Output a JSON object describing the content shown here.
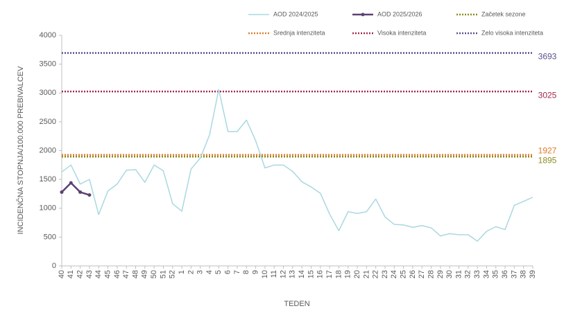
{
  "chart_data": {
    "type": "line",
    "x_label": "TEDEN",
    "y_label": "INCIDENČNA STOPNJA/100.000 PREBIVALCEV",
    "categories": [
      "40",
      "41",
      "42",
      "43",
      "44",
      "45",
      "46",
      "47",
      "48",
      "49",
      "50",
      "51",
      "52",
      "1",
      "2",
      "3",
      "4",
      "5",
      "6",
      "7",
      "8",
      "9",
      "10",
      "11",
      "12",
      "13",
      "14",
      "15",
      "16",
      "17",
      "18",
      "19",
      "20",
      "21",
      "22",
      "23",
      "24",
      "25",
      "26",
      "27",
      "28",
      "29",
      "30",
      "31",
      "32",
      "33",
      "34",
      "35",
      "36",
      "37",
      "38",
      "39"
    ],
    "series": [
      {
        "name": "AOD 2024/2025",
        "color": "#a9d8e0",
        "width": 1.5,
        "markers": false,
        "values": [
          1630,
          1750,
          1420,
          1500,
          890,
          1300,
          1420,
          1660,
          1670,
          1450,
          1750,
          1650,
          1080,
          950,
          1680,
          1870,
          2270,
          3060,
          2330,
          2330,
          2530,
          2170,
          1700,
          1750,
          1750,
          1640,
          1460,
          1370,
          1260,
          900,
          610,
          940,
          910,
          940,
          1160,
          850,
          720,
          710,
          670,
          700,
          660,
          520,
          560,
          540,
          540,
          430,
          600,
          680,
          630,
          1050,
          1120,
          1190
        ]
      },
      {
        "name": "AOD 2025/2026",
        "color": "#5b4173",
        "width": 2.5,
        "markers": true,
        "values": [
          1280,
          1440,
          1280,
          1230,
          null,
          null,
          null,
          null,
          null,
          null,
          null,
          null,
          null,
          null,
          null,
          null,
          null,
          null,
          null,
          null,
          null,
          null,
          null,
          null,
          null,
          null,
          null,
          null,
          null,
          null,
          null,
          null,
          null,
          null,
          null,
          null,
          null,
          null,
          null,
          null,
          null,
          null,
          null,
          null,
          null,
          null,
          null,
          null,
          null,
          null,
          null,
          null
        ]
      }
    ],
    "thresholds": [
      {
        "name": "Začetek sezone",
        "color": "#8c8c1e",
        "value": 1895
      },
      {
        "name": "Srednja intenziteta",
        "color": "#e07b28",
        "value": 1927
      },
      {
        "name": "Visoka intenziteta",
        "color": "#a3284a",
        "value": 3025
      },
      {
        "name": "Zelo visoka intenziteta",
        "color": "#5a4f8c",
        "value": 3693
      }
    ],
    "ylim": [
      0,
      4000
    ],
    "yticks": [
      0,
      500,
      1000,
      1500,
      2000,
      2500,
      3000,
      3500,
      4000
    ]
  }
}
